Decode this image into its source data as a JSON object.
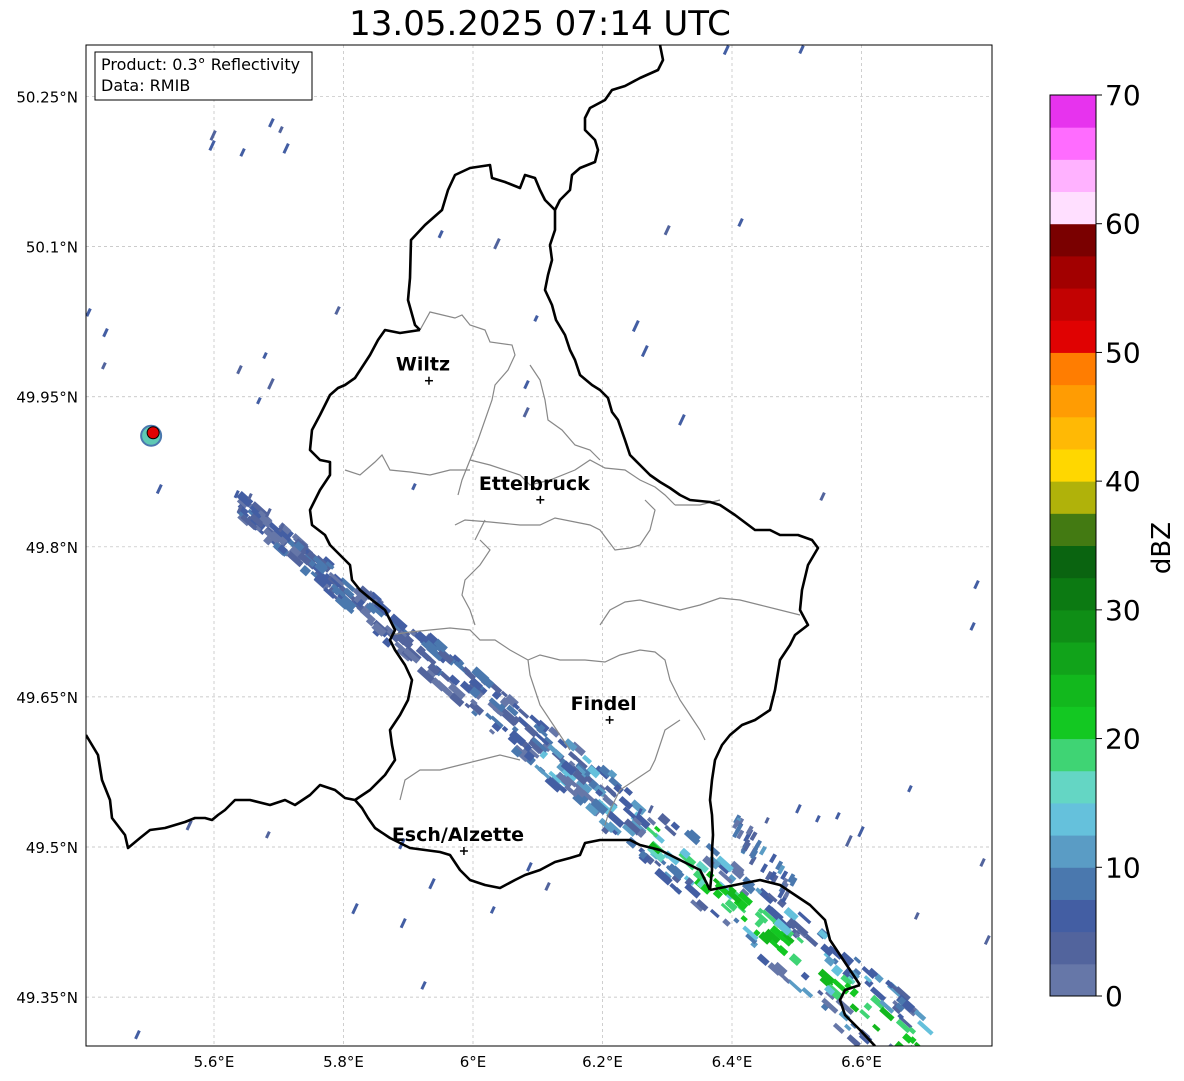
{
  "title": "13.05.2025 07:14 UTC",
  "info_box": {
    "product": "Product: 0.3° Reflectivity",
    "data": "Data: RMIB"
  },
  "axes": {
    "lat_ticks": [
      "50.25°N",
      "50.1°N",
      "49.95°N",
      "49.8°N",
      "49.65°N",
      "49.5°N",
      "49.35°N"
    ],
    "lon_ticks": [
      "5.6°E",
      "5.8°E",
      "6°E",
      "6.2°E",
      "6.4°E",
      "6.6°E"
    ]
  },
  "cities": [
    {
      "name": "Wiltz",
      "lat": 49.966,
      "lon": 5.932
    },
    {
      "name": "Ettelbruck",
      "lat": 49.847,
      "lon": 6.104
    },
    {
      "name": "Findel",
      "lat": 49.627,
      "lon": 6.211
    },
    {
      "name": "Esch/Alzette",
      "lat": 49.496,
      "lon": 5.986
    }
  ],
  "radar_site": {
    "lat": 49.914,
    "lon": 5.506
  },
  "colorbar": {
    "label": "dBZ",
    "ticks": [
      "0",
      "10",
      "20",
      "30",
      "40",
      "50",
      "60",
      "70"
    ],
    "colors": [
      "#6677a8",
      "#52649d",
      "#435ea3",
      "#4a78ae",
      "#5a9cc5",
      "#65c1dc",
      "#64d6c4",
      "#3fd474",
      "#13c822",
      "#12b81d",
      "#11a31a",
      "#0f8e16",
      "#0c7a12",
      "#0a6410",
      "#437a12",
      "#b0b20a",
      "#ffd700",
      "#ffb905",
      "#ff9c03",
      "#ff7d01",
      "#e00202",
      "#c20202",
      "#a20000",
      "#7a0000",
      "#ffdfff",
      "#ffb2ff",
      "#ff6cff",
      "#e733ee"
    ]
  }
}
